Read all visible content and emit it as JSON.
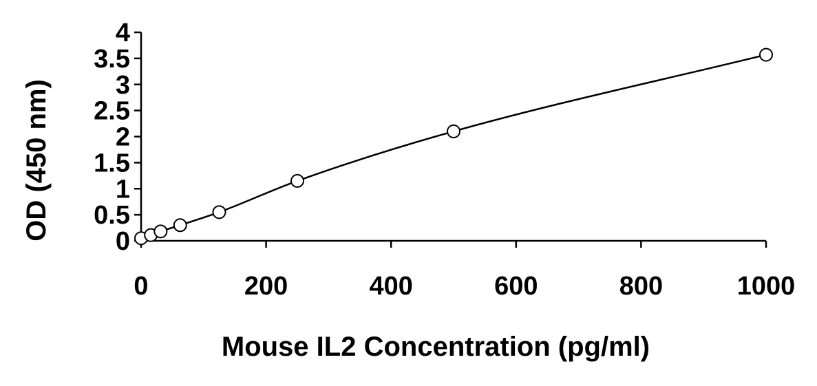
{
  "chart_data": {
    "type": "scatter",
    "title": "",
    "xlabel": "Mouse IL2 Concentration (pg/ml)",
    "ylabel": "OD (450 nm)",
    "xlim": [
      0,
      1000
    ],
    "ylim": [
      0,
      4
    ],
    "x_ticks": [
      0,
      200,
      400,
      600,
      800,
      1000
    ],
    "y_ticks": [
      0,
      0.5,
      1,
      1.5,
      2,
      2.5,
      3,
      3.5,
      4
    ],
    "x_tick_labels": [
      "0",
      "200",
      "400",
      "600",
      "800",
      "1000"
    ],
    "y_tick_labels": [
      "0",
      "0.5",
      "1",
      "1.5",
      "2",
      "2.5",
      "3",
      "3.5",
      "4"
    ],
    "grid": false,
    "legend": "none",
    "series": [
      {
        "marker": "open-circle",
        "trendline": true,
        "x": [
          0,
          15.6,
          31.25,
          62.5,
          125,
          250,
          500,
          1000
        ],
        "y": [
          0.05,
          0.11,
          0.18,
          0.3,
          0.55,
          1.15,
          2.1,
          3.57
        ]
      }
    ]
  }
}
